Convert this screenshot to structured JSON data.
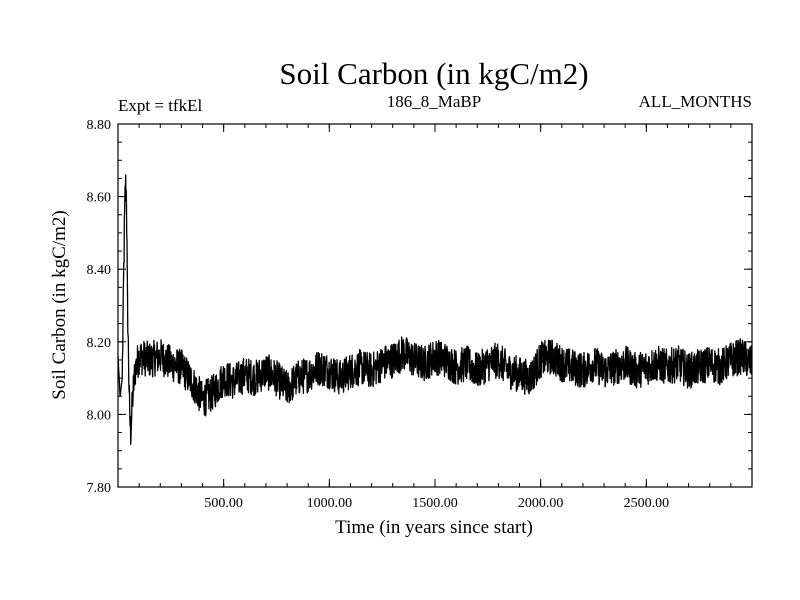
{
  "chart_data": {
    "type": "line",
    "title": "Soil Carbon (in kgC/m2)",
    "subtitle_left": "Expt = tfkEl",
    "subtitle_center": "186_8_MaBP",
    "subtitle_right": "ALL_MONTHS",
    "xlabel": "Time (in years since start)",
    "ylabel": "Soil Carbon (in kgC/m2)",
    "xlim": [
      0,
      3000
    ],
    "ylim": [
      7.8,
      8.8
    ],
    "x_ticks": [
      500,
      1000,
      1500,
      2000,
      2500
    ],
    "x_tick_labels": [
      "500.00",
      "1000.00",
      "1500.00",
      "2000.00",
      "2500.00"
    ],
    "y_ticks": [
      7.8,
      8.0,
      8.2,
      8.4,
      8.6,
      8.8
    ],
    "y_tick_labels": [
      "7.80",
      "8.00",
      "8.20",
      "8.40",
      "8.60",
      "8.80"
    ],
    "grid": false,
    "legend": "none",
    "line_color": "#000000",
    "series": [
      {
        "x": [
          0,
          10,
          20,
          30,
          35,
          40,
          45,
          50,
          55,
          60,
          70,
          80,
          100,
          150,
          200,
          250,
          300,
          350,
          400,
          450,
          500,
          550,
          600,
          650,
          700,
          750,
          800,
          850,
          900,
          950,
          1000,
          1050,
          1100,
          1150,
          1200,
          1250,
          1300,
          1350,
          1400,
          1450,
          1500,
          1550,
          1600,
          1650,
          1700,
          1750,
          1800,
          1850,
          1900,
          1950,
          2000,
          2050,
          2100,
          2150,
          2200,
          2250,
          2300,
          2350,
          2400,
          2450,
          2500,
          2550,
          2600,
          2650,
          2700,
          2750,
          2800,
          2850,
          2900,
          2950,
          3000
        ],
        "y": [
          8.16,
          8.05,
          8.1,
          8.5,
          8.64,
          8.6,
          8.3,
          8.15,
          8.0,
          7.95,
          8.05,
          8.12,
          8.16,
          8.15,
          8.16,
          8.14,
          8.13,
          8.09,
          8.04,
          8.06,
          8.1,
          8.09,
          8.11,
          8.1,
          8.12,
          8.1,
          8.07,
          8.1,
          8.11,
          8.13,
          8.12,
          8.1,
          8.12,
          8.13,
          8.12,
          8.14,
          8.15,
          8.17,
          8.15,
          8.14,
          8.16,
          8.15,
          8.13,
          8.14,
          8.12,
          8.14,
          8.15,
          8.12,
          8.11,
          8.1,
          8.15,
          8.16,
          8.14,
          8.13,
          8.12,
          8.14,
          8.12,
          8.13,
          8.14,
          8.12,
          8.13,
          8.14,
          8.13,
          8.14,
          8.12,
          8.13,
          8.14,
          8.13,
          8.15,
          8.16,
          8.14
        ],
        "noise_amplitude": 0.05
      }
    ]
  }
}
